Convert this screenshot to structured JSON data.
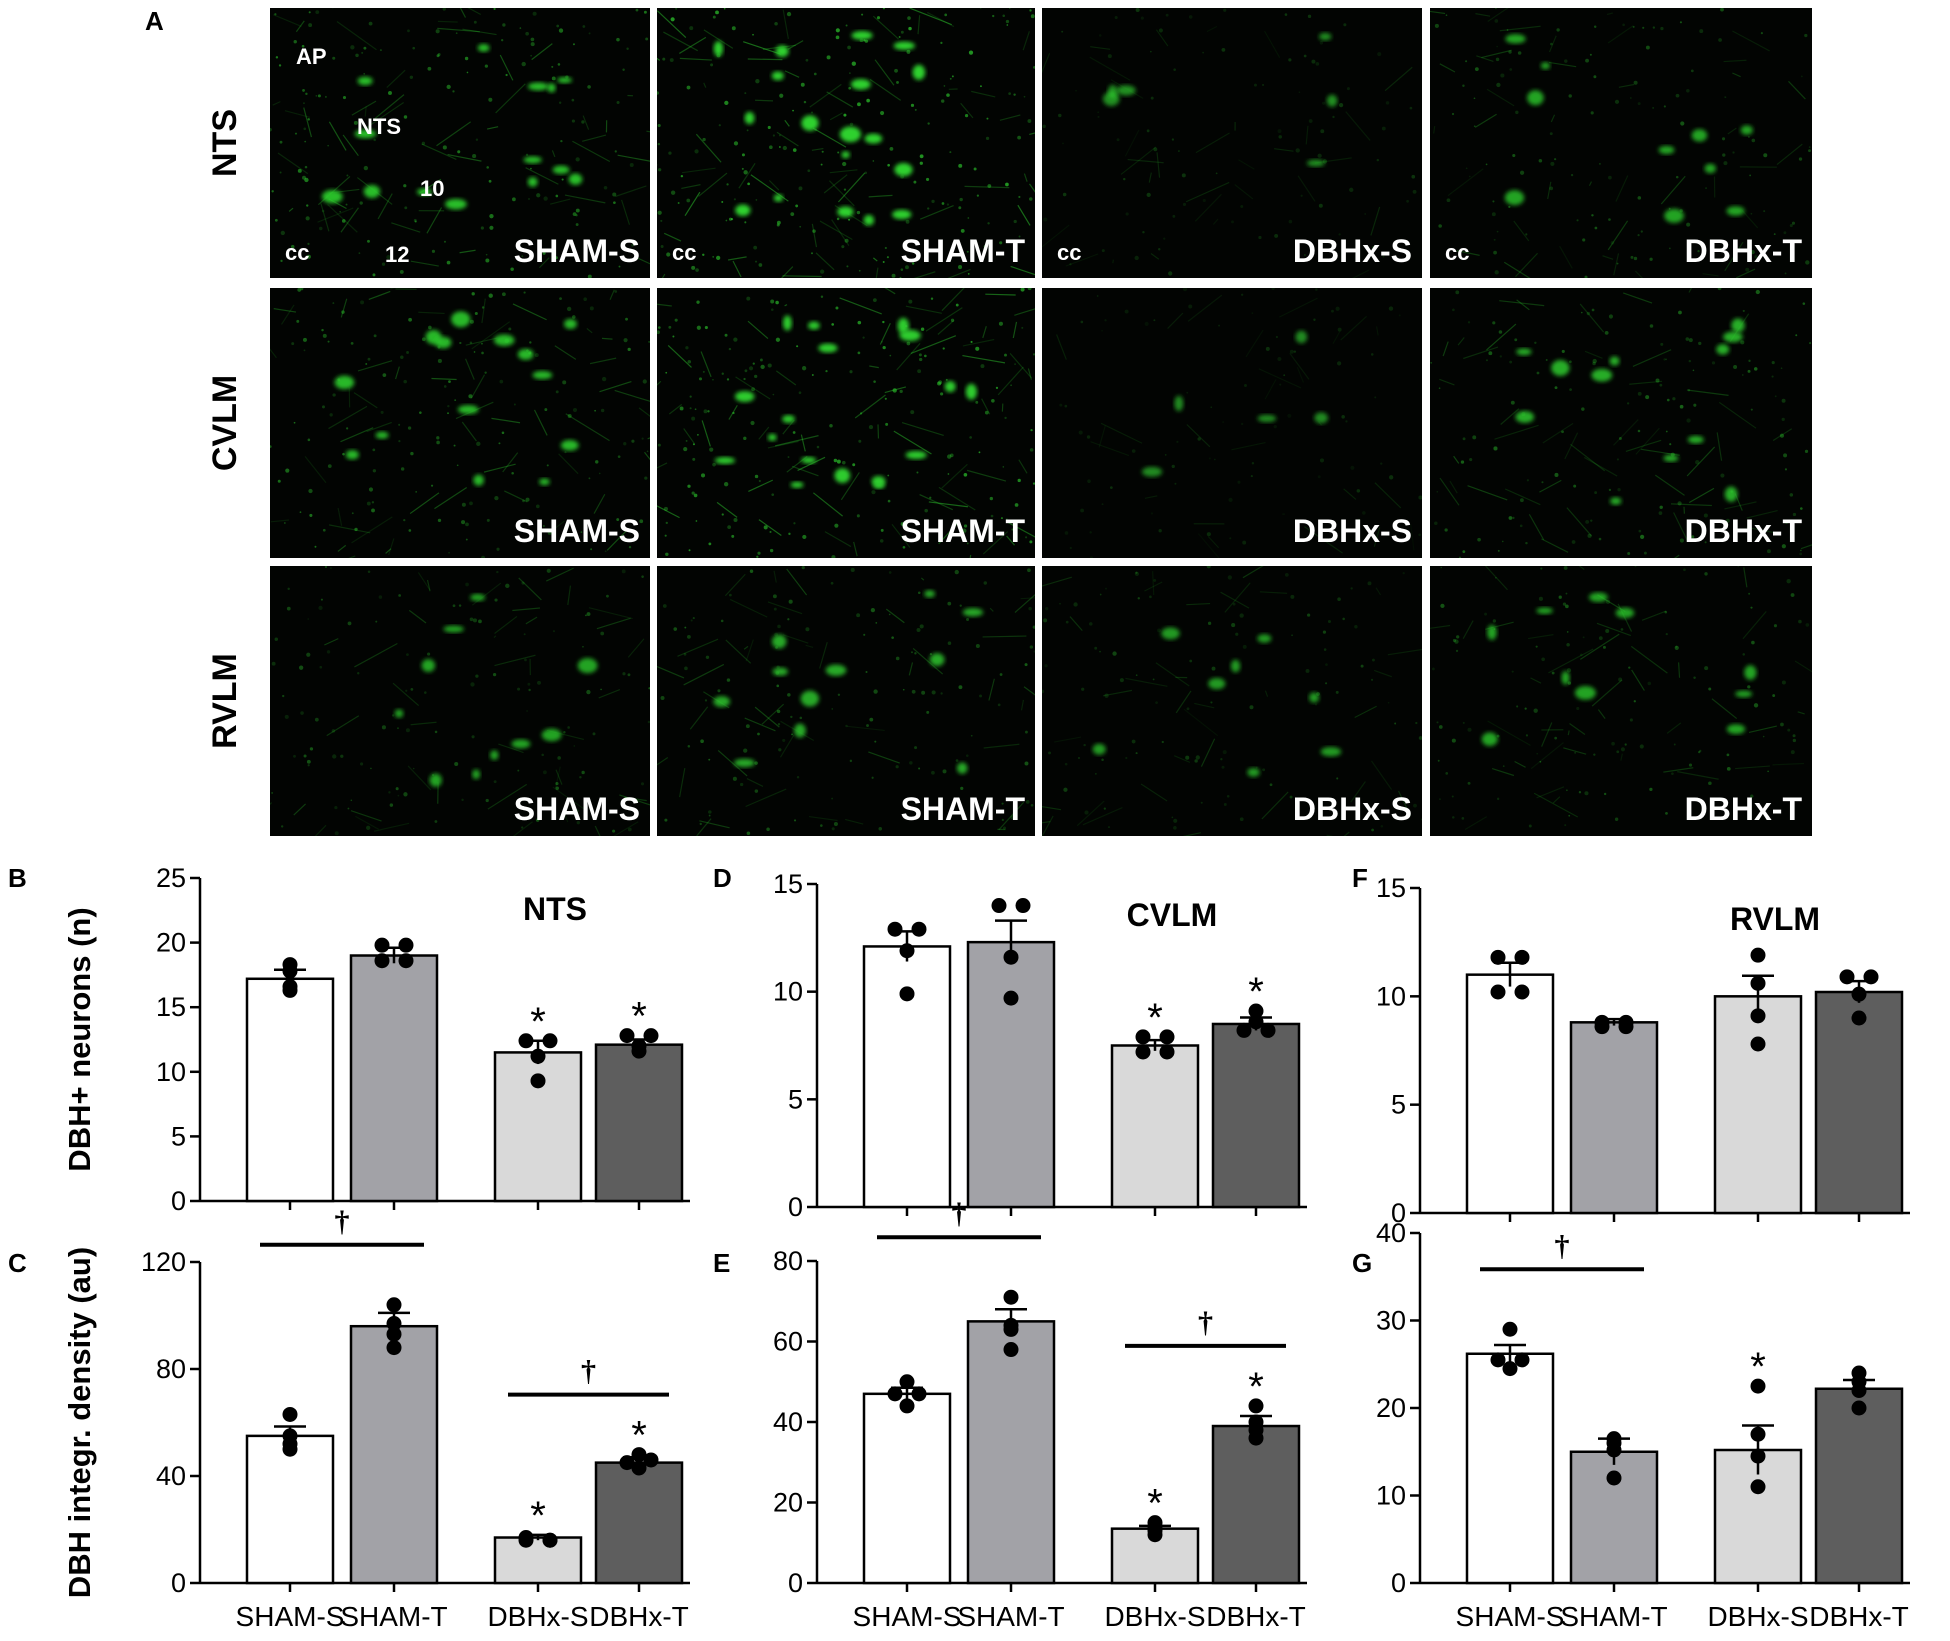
{
  "figure": {
    "panel_a_letter": "A",
    "rows": [
      "NTS",
      "CVLM",
      "RVLM"
    ],
    "groups": [
      "SHAM-S",
      "SHAM-T",
      "DBHx-S",
      "DBHx-T"
    ],
    "micrograph_annotations": {
      "ap": "AP",
      "nts": "NTS",
      "ten": "10",
      "twelve": "12",
      "cc": "cc"
    },
    "colors": {
      "fluorescence": "#2fd12f",
      "background": "#020402",
      "bars": [
        "#ffffff",
        "#a2a2a7",
        "#d9d9d9",
        "#5e5e5e"
      ]
    }
  },
  "chart_data": [
    {
      "id": "B",
      "type": "bar",
      "region": "NTS",
      "ylabel": "DBH+ neurons (n)",
      "ylim": [
        0,
        25
      ],
      "yticks": [
        0,
        5,
        10,
        15,
        20,
        25
      ],
      "categories": [
        "SHAM-S",
        "SHAM-T",
        "DBHx-S",
        "DBHx-T"
      ],
      "show_xlabels": false,
      "values": [
        17.2,
        19.0,
        11.5,
        12.1
      ],
      "sem": [
        0.7,
        0.6,
        0.9,
        0.4
      ],
      "points": [
        [
          18.3,
          17.8,
          16.6,
          16.3
        ],
        [
          19.8,
          19.8,
          18.6,
          18.6
        ],
        [
          12.4,
          12.4,
          11.2,
          9.3
        ],
        [
          12.8,
          12.8,
          12.0,
          11.6
        ]
      ],
      "significance_marks": [
        {
          "bar": 2,
          "symbol": "*"
        },
        {
          "bar": 3,
          "symbol": "*"
        }
      ],
      "comparison_brackets": []
    },
    {
      "id": "C",
      "type": "bar",
      "region": "",
      "ylabel": "DBH integr. density (au)",
      "ylim": [
        0,
        120
      ],
      "yticks": [
        0,
        40,
        80,
        120
      ],
      "categories": [
        "SHAM-S",
        "SHAM-T",
        "DBHx-S",
        "DBHx-T"
      ],
      "show_xlabels": true,
      "values": [
        55,
        96,
        17,
        45
      ],
      "sem": [
        3.5,
        5,
        1,
        2
      ],
      "points": [
        [
          63,
          55,
          52,
          50
        ],
        [
          104,
          97,
          93,
          88
        ],
        [
          17,
          16,
          16,
          16
        ],
        [
          48,
          46,
          45,
          43
        ]
      ],
      "significance_marks": [
        {
          "bar": 2,
          "symbol": "*"
        },
        {
          "bar": 3,
          "symbol": "*"
        }
      ],
      "comparison_brackets": [
        {
          "from": 0,
          "to": 1,
          "symbol": "†"
        },
        {
          "from": 2,
          "to": 3,
          "symbol": "†"
        }
      ]
    },
    {
      "id": "D",
      "type": "bar",
      "region": "CVLM",
      "ylabel": "",
      "ylim": [
        0,
        15
      ],
      "yticks": [
        0,
        5,
        10,
        15
      ],
      "categories": [
        "SHAM-S",
        "SHAM-T",
        "DBHx-S",
        "DBHx-T"
      ],
      "show_xlabels": false,
      "values": [
        12.1,
        12.3,
        7.5,
        8.5
      ],
      "sem": [
        0.7,
        1.0,
        0.25,
        0.3
      ],
      "points": [
        [
          12.9,
          12.9,
          11.9,
          9.9
        ],
        [
          14.0,
          14.0,
          11.6,
          9.7
        ],
        [
          7.9,
          7.9,
          7.2,
          7.2
        ],
        [
          9.1,
          8.6,
          8.2,
          8.2
        ]
      ],
      "significance_marks": [
        {
          "bar": 2,
          "symbol": "*"
        },
        {
          "bar": 3,
          "symbol": "*"
        }
      ],
      "comparison_brackets": []
    },
    {
      "id": "E",
      "type": "bar",
      "region": "",
      "ylabel": "",
      "ylim": [
        0,
        80
      ],
      "yticks": [
        0,
        20,
        40,
        60,
        80
      ],
      "categories": [
        "SHAM-S",
        "SHAM-T",
        "DBHx-S",
        "DBHx-T"
      ],
      "show_xlabels": true,
      "values": [
        47,
        65,
        13.5,
        39
      ],
      "sem": [
        1.5,
        3,
        0.7,
        2.5
      ],
      "points": [
        [
          50,
          47,
          47,
          44
        ],
        [
          71,
          64,
          63,
          58
        ],
        [
          15,
          14,
          13,
          12
        ],
        [
          44,
          40,
          38,
          36
        ]
      ],
      "significance_marks": [
        {
          "bar": 2,
          "symbol": "*"
        },
        {
          "bar": 3,
          "symbol": "*"
        }
      ],
      "comparison_brackets": [
        {
          "from": 0,
          "to": 1,
          "symbol": "†"
        },
        {
          "from": 2,
          "to": 3,
          "symbol": "†"
        }
      ]
    },
    {
      "id": "F",
      "type": "bar",
      "region": "RVLM",
      "ylabel": "",
      "ylim": [
        0,
        15
      ],
      "yticks": [
        0,
        5,
        10,
        15
      ],
      "categories": [
        "SHAM-S",
        "SHAM-T",
        "DBHx-S",
        "DBHx-T"
      ],
      "show_xlabels": false,
      "values": [
        11.0,
        8.8,
        10.0,
        10.2
      ],
      "sem": [
        0.55,
        0.15,
        0.95,
        0.5
      ],
      "points": [
        [
          11.8,
          11.8,
          10.2,
          10.2
        ],
        [
          8.8,
          8.8,
          8.6,
          8.6
        ],
        [
          11.9,
          10.6,
          9.1,
          7.8
        ],
        [
          10.9,
          10.9,
          10.1,
          9.0
        ]
      ],
      "significance_marks": [],
      "comparison_brackets": []
    },
    {
      "id": "G",
      "type": "bar",
      "region": "",
      "ylabel": "",
      "ylim": [
        0,
        40
      ],
      "yticks": [
        0,
        10,
        20,
        30,
        40
      ],
      "categories": [
        "SHAM-S",
        "SHAM-T",
        "DBHx-S",
        "DBHx-T"
      ],
      "show_xlabels": true,
      "values": [
        26.2,
        15,
        15.2,
        22.2
      ],
      "sem": [
        1,
        1.5,
        2.8,
        1
      ],
      "points": [
        [
          29,
          25.5,
          25.5,
          24.5
        ],
        [
          16.5,
          16,
          15.2,
          12
        ],
        [
          22.5,
          17,
          14.5,
          11
        ],
        [
          24,
          23,
          22,
          20
        ]
      ],
      "significance_marks": [
        {
          "bar": 2,
          "symbol": "*"
        }
      ],
      "comparison_brackets": [
        {
          "from": 0,
          "to": 1,
          "symbol": "†"
        }
      ]
    }
  ]
}
